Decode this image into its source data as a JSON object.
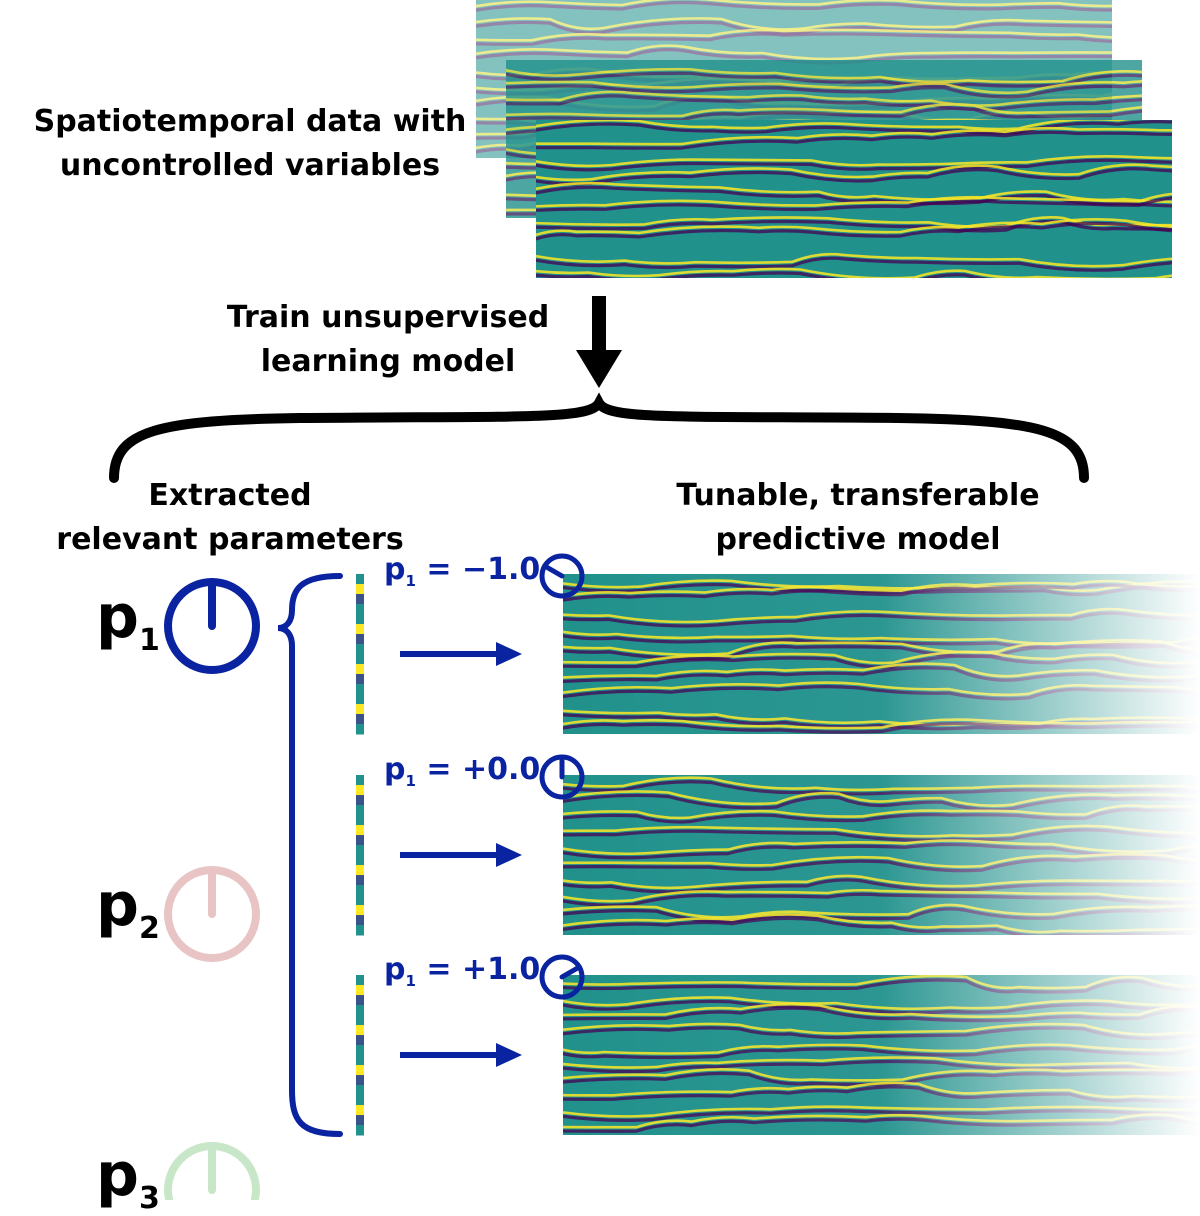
{
  "labels": {
    "input_data_line1": "Spatiotemporal data with",
    "input_data_line2": "uncontrolled variables",
    "train_line1": "Train unsupervised",
    "train_line2": "learning model",
    "params_line1": "Extracted",
    "params_line2": "relevant parameters",
    "model_line1": "Tunable, transferable",
    "model_line2": "predictive model"
  },
  "parameters": [
    {
      "symbol": "p",
      "index": "1",
      "color": "#0a23a0",
      "active": true
    },
    {
      "symbol": "p",
      "index": "2",
      "color": "#e8c4c4",
      "active": false
    },
    {
      "symbol": "p",
      "index": "3",
      "color": "#c8e6c8",
      "active": false
    }
  ],
  "predictions": [
    {
      "symbol": "p",
      "index": "1",
      "value_text": "= −1.0",
      "value": -1.0
    },
    {
      "symbol": "p",
      "index": "1",
      "value_text": "= +0.0",
      "value": 0.0
    },
    {
      "symbol": "p",
      "index": "1",
      "value_text": "= +1.0",
      "value": 1.0
    }
  ],
  "colors": {
    "accent": "#0a23a0",
    "viridis_dark": "#440154",
    "viridis_mid": "#21918c",
    "viridis_yellow": "#fde725"
  }
}
